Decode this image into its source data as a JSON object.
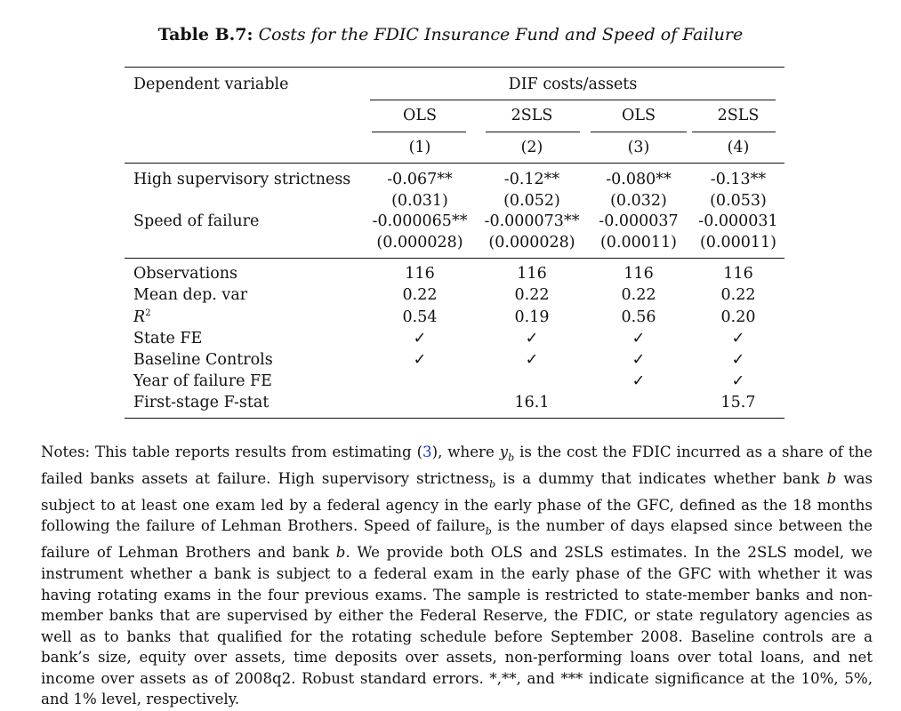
{
  "caption": {
    "label": "Table B.7:",
    "text": "Costs for the FDIC Insurance Fund and Speed of Failure"
  },
  "header": {
    "dep_var_label": "Dependent variable",
    "dep_var_value": "DIF costs/assets",
    "methods": [
      "OLS",
      "2SLS",
      "OLS",
      "2SLS"
    ],
    "col_numbers": [
      "(1)",
      "(2)",
      "(3)",
      "(4)"
    ]
  },
  "coef_rows": [
    {
      "label": "High supervisory strictness",
      "values": [
        "-0.067**",
        "-0.12**",
        "-0.080**",
        "-0.13**"
      ],
      "se": [
        "(0.031)",
        "(0.052)",
        "(0.032)",
        "(0.053)"
      ]
    },
    {
      "label": "Speed of failure",
      "values": [
        "-0.000065**",
        "-0.000073**",
        "-0.000037",
        "-0.000031"
      ],
      "se": [
        "(0.000028)",
        "(0.000028)",
        "(0.00011)",
        "(0.00011)"
      ]
    }
  ],
  "stat_rows": [
    {
      "label": "Observations",
      "values": [
        "116",
        "116",
        "116",
        "116"
      ]
    },
    {
      "label": "Mean dep. var",
      "values": [
        "0.22",
        "0.22",
        "0.22",
        "0.22"
      ]
    },
    {
      "label": "R2",
      "values": [
        "0.54",
        "0.19",
        "0.56",
        "0.20"
      ]
    },
    {
      "label": "State FE",
      "values": [
        "✓",
        "✓",
        "✓",
        "✓"
      ]
    },
    {
      "label": "Baseline Controls",
      "values": [
        "✓",
        "✓",
        "✓",
        "✓"
      ]
    },
    {
      "label": "Year of failure FE",
      "values": [
        "",
        "",
        "✓",
        "✓"
      ]
    },
    {
      "label": "First-stage F-stat",
      "values": [
        "",
        "16.1",
        "",
        "15.7"
      ]
    }
  ],
  "notes": {
    "p1": "Notes: This table reports results from estimating (",
    "ref": "3",
    "p2": "), where ",
    "y": "y",
    "b": "b",
    "p3": " is the cost the FDIC incurred as a share of the failed banks assets at failure. High supervisory strictness",
    "p4": " is a dummy that indicates whether bank ",
    "p5": " was subject to at least one exam led by a federal agency in the early phase of the GFC, defined as the 18 months following the failure of Lehman Brothers. Speed of failure",
    "p6": " is the number of days elapsed since between the failure of Lehman Brothers and bank ",
    "p7": ". We provide both OLS and 2SLS estimates. In the 2SLS model, we instrument whether a bank is subject to a federal exam in the early phase of the GFC with whether it was having rotating exams in the four previous exams. The sample is restricted to state-member banks and non-member banks that are supervised by either the Federal Reserve, the FDIC, or state regulatory agencies as well as to banks that qualified for the rotating schedule before September 2008. Baseline controls are a bank’s size, equity over assets, time deposits over assets, non-performing loans over total loans, and net income over assets as of 2008q2. Robust standard errors. *,**, and *** indicate significance at the 10%, 5%, and 1% level, respectively."
  }
}
